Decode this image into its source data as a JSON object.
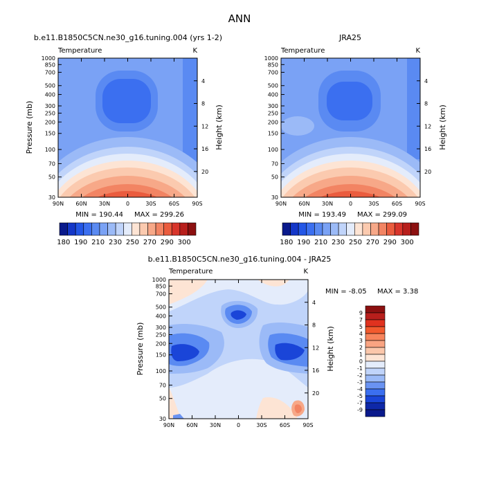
{
  "page_title": "ANN",
  "chart_data": [
    {
      "type": "heatmap",
      "id": "model",
      "title": "b.e11.B1850C5CN.ne30_g16.tuning.004 (yrs 1-2)",
      "subtitle_left": "Temperature",
      "subtitle_right": "K",
      "xlabel": "",
      "ylabel": "Pressure (mb)",
      "ylabel_right": "Height (km)",
      "x_ticks": [
        "90N",
        "60N",
        "30N",
        "0",
        "30S",
        "60S",
        "90S"
      ],
      "y_ticks": [
        "30",
        "50",
        "70",
        "100",
        "150",
        "200",
        "250",
        "300",
        "400",
        "500",
        "700",
        "850",
        "1000"
      ],
      "height_ticks": [
        "20",
        "16",
        "12",
        "8",
        "4"
      ],
      "min_text": "MIN = 190.44",
      "max_text": "MAX = 299.26",
      "min": 190.44,
      "max": 299.26
    },
    {
      "type": "heatmap",
      "id": "obs",
      "title": "JRA25",
      "subtitle_left": "Temperature",
      "subtitle_right": "K",
      "ylabel_right": "Height (km)",
      "x_ticks": [
        "90N",
        "60N",
        "30N",
        "0",
        "30S",
        "60S",
        "90S"
      ],
      "y_ticks": [
        "30",
        "50",
        "70",
        "100",
        "150",
        "200",
        "250",
        "300",
        "400",
        "500",
        "700",
        "850",
        "1000"
      ],
      "height_ticks": [
        "20",
        "16",
        "12",
        "8",
        "4"
      ],
      "min_text": "MIN = 193.49",
      "max_text": "MAX = 299.09",
      "min": 193.49,
      "max": 299.09
    },
    {
      "type": "heatmap",
      "id": "diff",
      "title": "b.e11.B1850C5CN.ne30_g16.tuning.004 - JRA25",
      "subtitle_left": "Temperature",
      "subtitle_right": "K",
      "ylabel": "Pressure (mb)",
      "ylabel_right": "Height (km)",
      "x_ticks": [
        "90N",
        "60N",
        "30N",
        "0",
        "30S",
        "60S",
        "90S"
      ],
      "y_ticks": [
        "30",
        "50",
        "70",
        "100",
        "150",
        "200",
        "250",
        "300",
        "400",
        "500",
        "700",
        "850",
        "1000"
      ],
      "height_ticks": [
        "20",
        "16",
        "12",
        "8",
        "4"
      ],
      "min_text": "MIN = -8.05",
      "max_text": "MAX =  3.38",
      "min": -8.05,
      "max": 3.38
    }
  ],
  "temp_colorbar": {
    "labels": [
      "180",
      "190",
      "210",
      "230",
      "250",
      "270",
      "290",
      "300"
    ],
    "colors": [
      "#0a1a8c",
      "#1437c8",
      "#2356e6",
      "#3b6ff0",
      "#5a8af2",
      "#7aa2f5",
      "#9bbaf7",
      "#c0d4fa",
      "#e4ecfb",
      "#fde4d4",
      "#fbcaaf",
      "#f7a888",
      "#f28463",
      "#ea5c3e",
      "#d8352b",
      "#b81f1c",
      "#8c1010"
    ]
  },
  "diff_colorbar": {
    "labels": [
      "9",
      "7",
      "5",
      "4",
      "3",
      "2",
      "1",
      "0",
      "-1",
      "-2",
      "-3",
      "-4",
      "-5",
      "-7",
      "-9"
    ],
    "colors": [
      "#8c1010",
      "#b81f1c",
      "#e0321f",
      "#f25a2e",
      "#f7845c",
      "#f9a482",
      "#fbc7ab",
      "#fde4d4",
      "#e4ecfb",
      "#c0d4fa",
      "#9bbaf7",
      "#6a93f2",
      "#3b6ff0",
      "#1a45d8",
      "#0e28a8",
      "#0a1a8c"
    ]
  }
}
